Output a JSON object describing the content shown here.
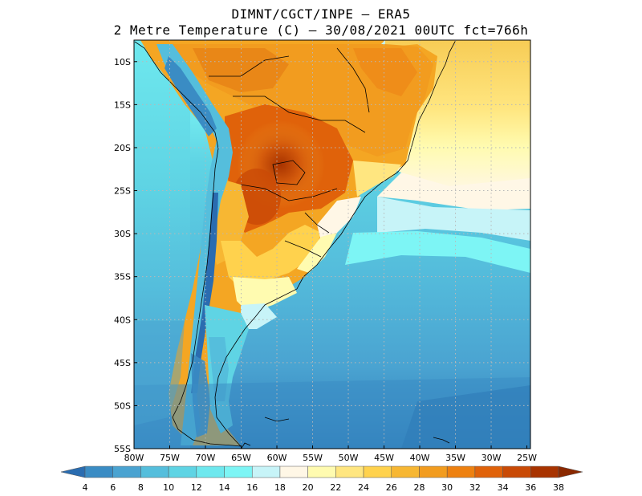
{
  "header": {
    "line1": "DIMNT/CGCT/INPE –  ERA5",
    "line2": "2 Metre Temperature (C) –  30/08/2021 00UTC fct=766h"
  },
  "axes": {
    "lat_labels": [
      "10S",
      "15S",
      "20S",
      "25S",
      "30S",
      "35S",
      "40S",
      "45S",
      "50S",
      "55S"
    ],
    "lon_labels": [
      "80W",
      "75W",
      "70W",
      "65W",
      "60W",
      "55W",
      "50W",
      "45W",
      "40W",
      "35W",
      "30W",
      "25W"
    ]
  },
  "colorbar": {
    "labels": [
      "4",
      "6",
      "8",
      "10",
      "12",
      "14",
      "16",
      "18",
      "20",
      "22",
      "24",
      "26",
      "28",
      "30",
      "32",
      "34",
      "36",
      "38"
    ],
    "colors": [
      "#2a6cb0",
      "#3a8cc4",
      "#4aa3d1",
      "#55bedc",
      "#5fd4e4",
      "#6ee8ee",
      "#7df5f5",
      "#c7f4f8",
      "#fff7e6",
      "#fffbb0",
      "#ffe680",
      "#ffd24d",
      "#f7b733",
      "#f29c1f",
      "#ee8110",
      "#e0620a",
      "#c94a06",
      "#a83300",
      "#8a2800"
    ]
  }
}
